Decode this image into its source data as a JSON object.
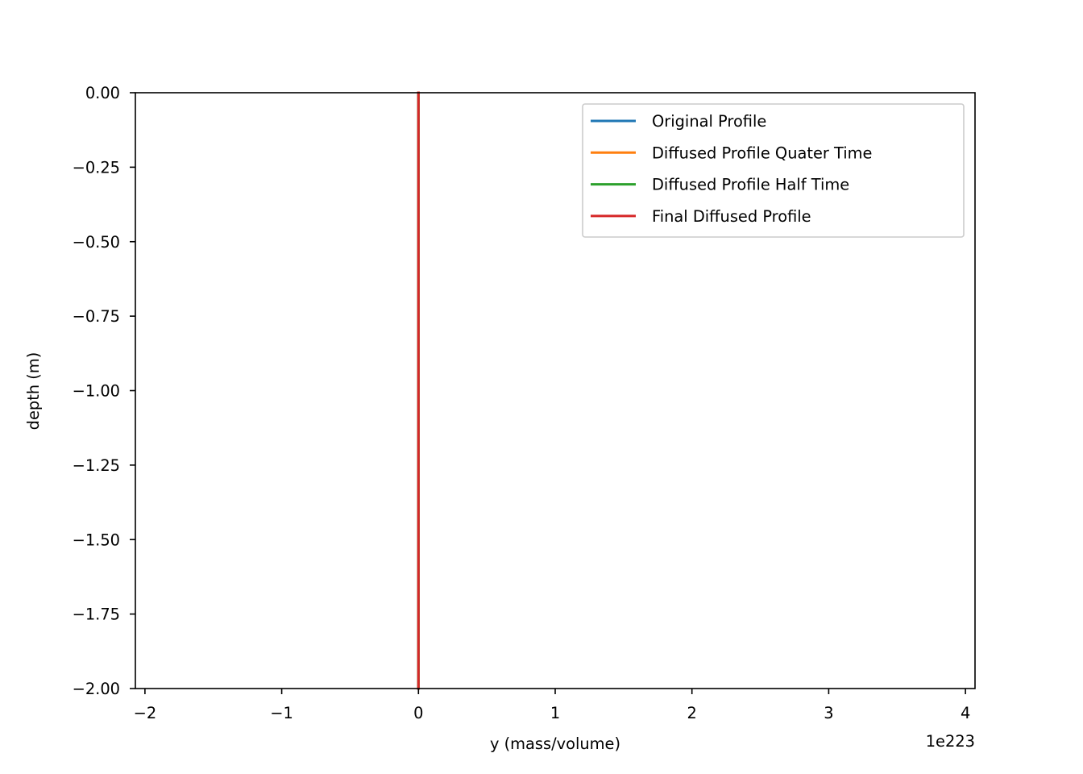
{
  "chart_data": {
    "type": "line",
    "title": "",
    "xlabel": "y (mass/volume)",
    "ylabel": "depth (m)",
    "x_offset_label": "1e223",
    "xlim": [
      -2.07,
      4.07
    ],
    "ylim": [
      -2.0,
      0.0
    ],
    "xticks": [
      -2,
      -1,
      0,
      1,
      2,
      3,
      4
    ],
    "xtick_labels": [
      "−2",
      "−1",
      "0",
      "1",
      "2",
      "3",
      "4"
    ],
    "yticks": [
      0.0,
      -0.25,
      -0.5,
      -0.75,
      -1.0,
      -1.25,
      -1.5,
      -1.75,
      -2.0
    ],
    "ytick_labels": [
      "0.00",
      "−0.25",
      "−0.50",
      "−0.75",
      "−1.00",
      "−1.25",
      "−1.50",
      "−1.75",
      "−2.00"
    ],
    "grid": false,
    "legend_position": "top-right",
    "series": [
      {
        "name": "Original Profile",
        "color": "#1f77b4",
        "x": [
          0,
          0
        ],
        "y": [
          0.0,
          -2.0
        ]
      },
      {
        "name": "Diffused Profile Quater Time",
        "color": "#ff7f0e",
        "x": [
          0,
          0
        ],
        "y": [
          0.0,
          -2.0
        ]
      },
      {
        "name": "Diffused Profile Half Time",
        "color": "#2ca02c",
        "x": [
          0,
          0
        ],
        "y": [
          0.0,
          -2.0
        ]
      },
      {
        "name": "Final Diffused Profile",
        "color": "#d62728",
        "x": [
          0,
          0
        ],
        "y": [
          0.0,
          -2.0
        ]
      }
    ]
  }
}
